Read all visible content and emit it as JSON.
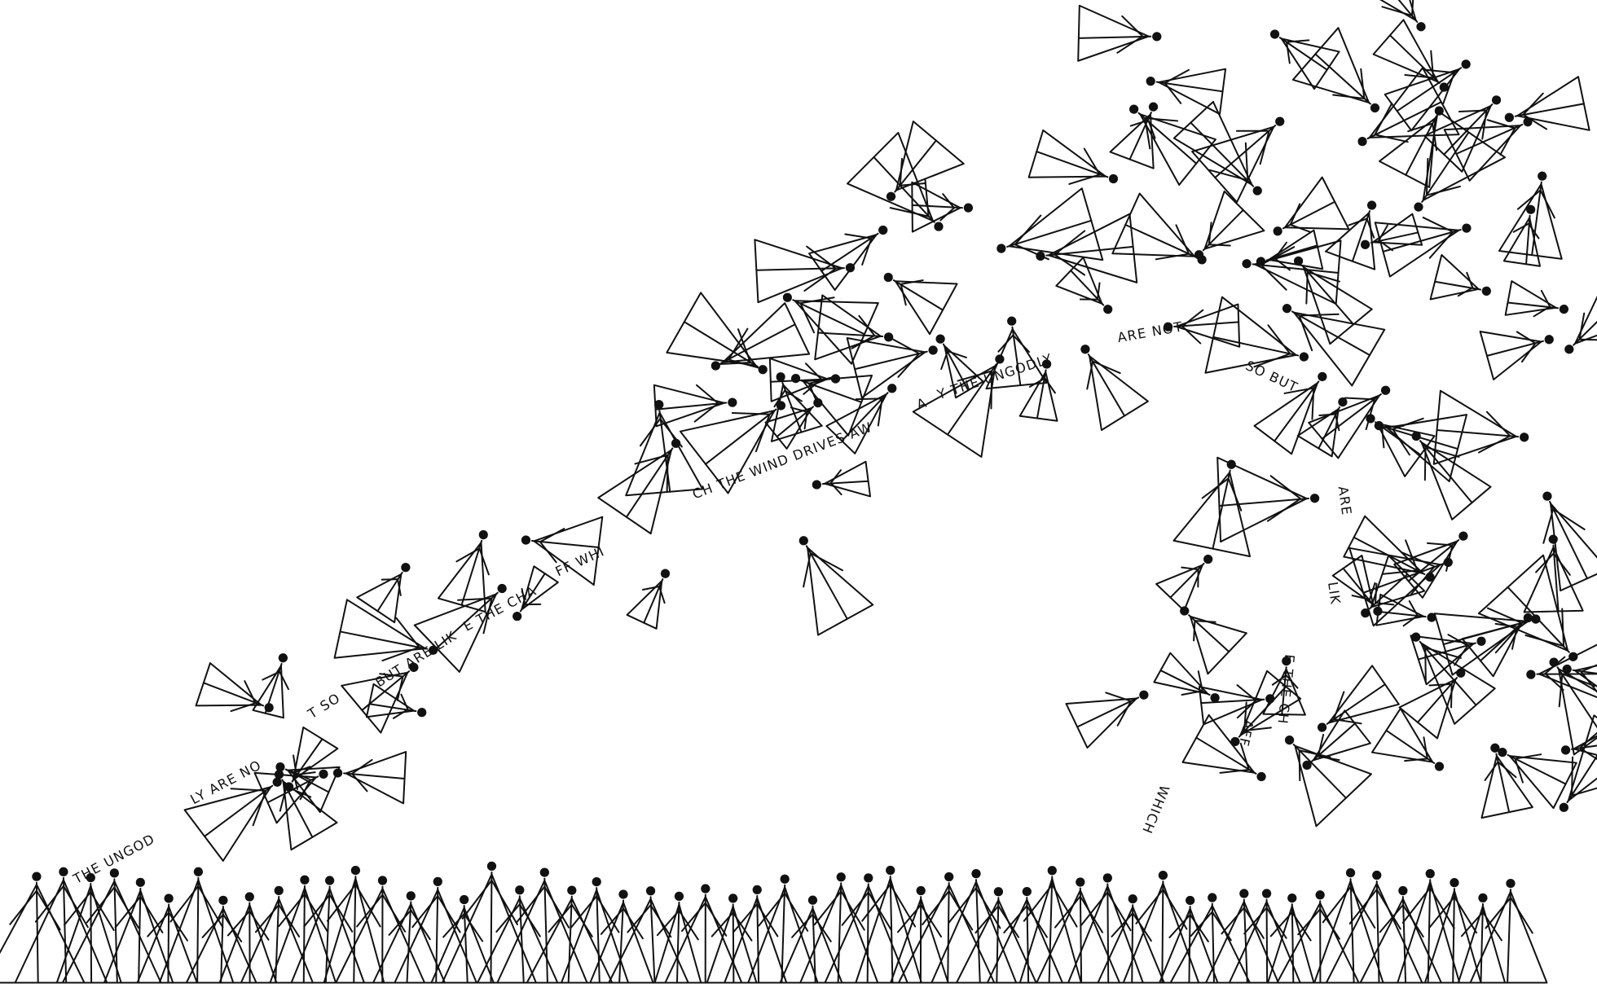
{
  "text_fragments": [
    "THE UNGOD",
    "LY ARE NO",
    "T SO",
    "BUT ARE LIK",
    "E THE CHA",
    "FF WHI",
    "CH THE WIND DRIVES AW",
    "A",
    "Y THE UNGODLY",
    "ARE NOT",
    "SO BUT",
    "ARE",
    "LIK",
    "E THE CH",
    "AFF",
    "WHICH"
  ]
}
